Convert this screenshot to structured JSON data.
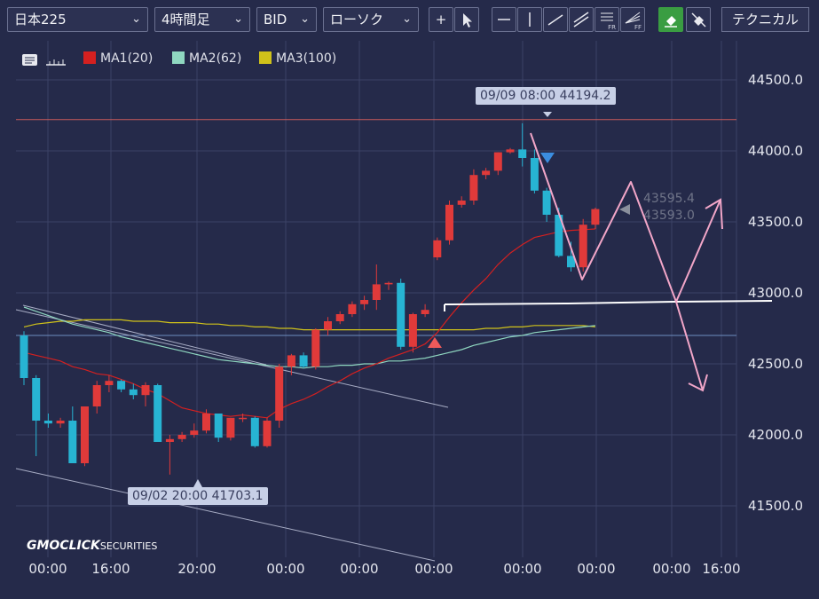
{
  "toolbar": {
    "symbol": "日本225",
    "timeframe": "4時間足",
    "price_type": "BID",
    "chart_type": "ローソク",
    "technical_label": "テクニカル",
    "tool_fr": "FR",
    "tool_ff": "FF"
  },
  "icons": [
    "menu-chevron-down-icon",
    "crosshair-icon",
    "cursor-icon",
    "horizontal-line-icon",
    "vertical-line-icon",
    "trendline-icon",
    "channel-icon",
    "fibonacci-retracement-icon",
    "fibonacci-fan-icon",
    "eraser-icon",
    "hide-drawings-icon",
    "note-icon",
    "ruler-icon"
  ],
  "colors": {
    "background": "#252a4a",
    "up": "#e03a3a",
    "down": "#27b4d3",
    "ma1": "#d42020",
    "ma2": "#8fd7c0",
    "ma3": "#d0c21a",
    "resistance": "#c95b5b",
    "support": "#6d8fc0",
    "annotation": "#f2a6c8"
  },
  "brand": {
    "name": "GMOCLICK",
    "suffix": "SECURITIES"
  },
  "chart_data": {
    "type": "candlestick",
    "legend": [
      {
        "name": "MA1(20)",
        "color": "#d42020"
      },
      {
        "name": "MA2(62)",
        "color": "#8fd7c0"
      },
      {
        "name": "MA3(100)",
        "color": "#d0c21a"
      }
    ],
    "y_ticks": [
      "44500.0",
      "44000.0",
      "43500.0",
      "43000.0",
      "42500.0",
      "42000.0",
      "41500.0"
    ],
    "y_tick_values": [
      44500,
      44000,
      43500,
      43000,
      42500,
      42000,
      41500
    ],
    "ylim": [
      41200,
      44750
    ],
    "x_ticks": [
      "00:00",
      "16:00",
      "20:00",
      "00:00",
      "00:00",
      "00:00",
      "00:00",
      "00:00",
      "16:00"
    ],
    "candles": [
      [
        42700,
        42730,
        42350,
        42400
      ],
      [
        42400,
        42420,
        41850,
        42100
      ],
      [
        42100,
        42150,
        42050,
        42080
      ],
      [
        42080,
        42120,
        42050,
        42100
      ],
      [
        42100,
        42200,
        41800,
        41800
      ],
      [
        41800,
        42200,
        41780,
        42200
      ],
      [
        42200,
        42380,
        42150,
        42350
      ],
      [
        42350,
        42420,
        42300,
        42380
      ],
      [
        42380,
        42390,
        42300,
        42320
      ],
      [
        42320,
        42360,
        42250,
        42280
      ],
      [
        42280,
        42370,
        42200,
        42350
      ],
      [
        42350,
        42360,
        41950,
        41950
      ],
      [
        41950,
        42000,
        41720,
        41970
      ],
      [
        41970,
        42020,
        41950,
        42000
      ],
      [
        42000,
        42080,
        41980,
        42030
      ],
      [
        42030,
        42180,
        42010,
        42150
      ],
      [
        42150,
        42150,
        41950,
        41980
      ],
      [
        41980,
        42120,
        41960,
        42120
      ],
      [
        42120,
        42150,
        42090,
        42120
      ],
      [
        42120,
        42130,
        41910,
        41920
      ],
      [
        41920,
        42120,
        41910,
        42100
      ],
      [
        42100,
        42500,
        42050,
        42480
      ],
      [
        42480,
        42570,
        42420,
        42560
      ],
      [
        42560,
        42580,
        42470,
        42480
      ],
      [
        42480,
        42750,
        42460,
        42740
      ],
      [
        42740,
        42830,
        42700,
        42800
      ],
      [
        42800,
        42870,
        42780,
        42850
      ],
      [
        42850,
        42940,
        42830,
        42920
      ],
      [
        42920,
        42980,
        42880,
        42950
      ],
      [
        42950,
        43200,
        42880,
        43060
      ],
      [
        43060,
        43080,
        43020,
        43070
      ],
      [
        43070,
        43100,
        42600,
        42620
      ],
      [
        42620,
        42860,
        42580,
        42850
      ],
      [
        42850,
        42920,
        42830,
        42880
      ],
      [
        43250,
        43390,
        43230,
        43370
      ],
      [
        43370,
        43650,
        43340,
        43620
      ],
      [
        43620,
        43680,
        43600,
        43650
      ],
      [
        43650,
        43870,
        43620,
        43830
      ],
      [
        43830,
        43880,
        43800,
        43860
      ],
      [
        43860,
        43990,
        43830,
        43990
      ],
      [
        43990,
        44020,
        43980,
        44010
      ],
      [
        44010,
        44194,
        43890,
        43950
      ],
      [
        43950,
        44010,
        43700,
        43720
      ],
      [
        43720,
        43740,
        43500,
        43550
      ],
      [
        43550,
        43600,
        43250,
        43260
      ],
      [
        43260,
        43360,
        43150,
        43180
      ],
      [
        43180,
        43520,
        43150,
        43480
      ],
      [
        43480,
        43600,
        43450,
        43590
      ]
    ],
    "ma1": [
      42580,
      42560,
      42540,
      42520,
      42480,
      42460,
      42430,
      42420,
      42390,
      42360,
      42320,
      42290,
      42240,
      42190,
      42170,
      42150,
      42140,
      42130,
      42140,
      42130,
      42120,
      42180,
      42220,
      42250,
      42290,
      42340,
      42380,
      42430,
      42470,
      42500,
      42540,
      42570,
      42600,
      42640,
      42720,
      42830,
      42930,
      43020,
      43100,
      43200,
      43280,
      43340,
      43390,
      43410,
      43430,
      43440,
      43445,
      43450
    ],
    "ma2": [
      42900,
      42870,
      42840,
      42810,
      42780,
      42760,
      42740,
      42720,
      42690,
      42670,
      42650,
      42630,
      42610,
      42590,
      42570,
      42550,
      42530,
      42520,
      42510,
      42500,
      42490,
      42480,
      42480,
      42470,
      42480,
      42480,
      42490,
      42490,
      42500,
      42500,
      42520,
      42520,
      42530,
      42540,
      42560,
      42580,
      42600,
      42630,
      42650,
      42670,
      42690,
      42700,
      42720,
      42730,
      42740,
      42750,
      42760,
      42770
    ],
    "ma3": [
      42760,
      42780,
      42790,
      42800,
      42800,
      42810,
      42810,
      42810,
      42810,
      42800,
      42800,
      42800,
      42790,
      42790,
      42790,
      42780,
      42780,
      42770,
      42770,
      42760,
      42760,
      42750,
      42750,
      42740,
      42740,
      42740,
      42740,
      42740,
      42740,
      42740,
      42740,
      42740,
      42740,
      42740,
      42740,
      42740,
      42740,
      42740,
      42750,
      42750,
      42760,
      42760,
      42770,
      42770,
      42770,
      42770,
      42770,
      42760
    ],
    "resistance_level": 44220,
    "support_level": 42700,
    "high_callout": "09/09 08:00 44194.2",
    "low_callout": "09/02 20:00 41703.1",
    "price_tags": [
      "43595.4",
      "43593.0"
    ],
    "grid": true
  }
}
